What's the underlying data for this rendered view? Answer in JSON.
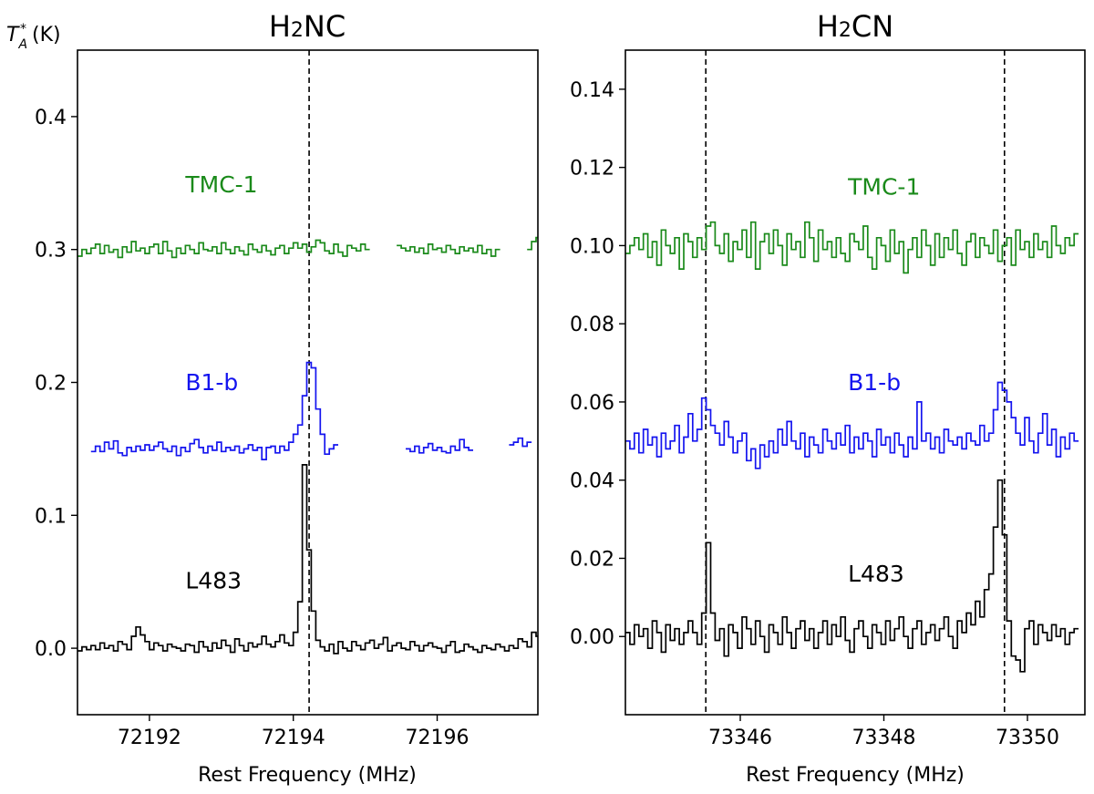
{
  "y_unit_label": {
    "symbol": "T",
    "sub": "A",
    "sup": "*",
    "unit": "(K)"
  },
  "chart_data": [
    {
      "type": "line",
      "title": {
        "main": "H",
        "sub": "2",
        "rest": "NC"
      },
      "xlabel": "Rest Frequency (MHz)",
      "xlim": [
        72191.0,
        72197.4
      ],
      "ylim": [
        -0.05,
        0.45
      ],
      "xticks": [
        72192,
        72194,
        72196
      ],
      "yticks": [
        0.0,
        0.1,
        0.2,
        0.3,
        0.4
      ],
      "ytick_labels": [
        "0.0",
        "0.1",
        "0.2",
        "0.3",
        "0.4"
      ],
      "line_markers": [
        72194.22
      ],
      "series": [
        {
          "name": "TMC-1",
          "color": "#1a8a1a",
          "label_pos": [
            72192.5,
            0.343
          ],
          "x0": 72191.0,
          "dx": 0.0625,
          "values": [
            0.295,
            0.3,
            0.297,
            0.301,
            0.304,
            0.297,
            0.303,
            0.298,
            0.3,
            0.294,
            0.302,
            0.298,
            0.306,
            0.299,
            0.301,
            0.297,
            0.302,
            0.304,
            0.297,
            0.306,
            0.299,
            0.294,
            0.301,
            0.297,
            0.303,
            0.3,
            0.297,
            0.305,
            0.3,
            0.299,
            0.302,
            0.297,
            0.305,
            0.3,
            0.297,
            0.302,
            0.299,
            0.296,
            0.304,
            0.3,
            0.298,
            0.303,
            0.299,
            0.296,
            0.301,
            0.303,
            0.297,
            0.301,
            0.305,
            0.301,
            0.304,
            0.298,
            0.302,
            0.307,
            0.305,
            0.299,
            0.297,
            0.304,
            0.298,
            0.295,
            0.303,
            0.301,
            0.299,
            0.304,
            0.3,
            null,
            null,
            null,
            null,
            null,
            null,
            0.303,
            0.301,
            0.299,
            0.302,
            0.298,
            0.301,
            0.297,
            0.304,
            0.3,
            0.301,
            0.298,
            0.303,
            0.3,
            0.297,
            0.302,
            0.299,
            0.301,
            0.298,
            0.303,
            0.297,
            0.3,
            0.295,
            0.3,
            null,
            null,
            null,
            null,
            null,
            null,
            0.3,
            0.306,
            0.309,
            0.303,
            0.297
          ]
        },
        {
          "name": "B1-b",
          "color": "#1414ef",
          "label_pos": [
            72192.5,
            0.194
          ],
          "x0": 72191.0,
          "dx": 0.0625,
          "values": [
            null,
            null,
            null,
            0.148,
            0.152,
            0.148,
            0.155,
            0.15,
            0.156,
            0.147,
            0.145,
            0.151,
            0.148,
            0.152,
            0.149,
            0.153,
            0.149,
            0.152,
            0.155,
            0.15,
            0.148,
            0.152,
            0.145,
            0.151,
            0.148,
            0.154,
            0.157,
            0.151,
            0.147,
            0.152,
            0.149,
            0.155,
            0.148,
            0.151,
            0.149,
            0.152,
            0.147,
            0.15,
            0.153,
            0.149,
            0.151,
            0.142,
            0.151,
            0.152,
            0.147,
            0.152,
            0.149,
            0.155,
            0.161,
            0.168,
            0.19,
            0.215,
            0.211,
            0.18,
            0.161,
            0.146,
            0.15,
            0.153,
            null,
            null,
            null,
            null,
            null,
            null,
            null,
            null,
            null,
            null,
            null,
            null,
            null,
            null,
            null,
            0.15,
            0.148,
            0.152,
            0.147,
            0.151,
            0.154,
            0.149,
            0.151,
            0.148,
            0.147,
            0.152,
            0.149,
            0.157,
            0.151,
            0.149,
            null,
            null,
            null,
            null,
            null,
            null,
            null,
            null,
            0.153,
            0.155,
            0.158,
            0.152,
            0.155
          ]
        },
        {
          "name": "L483",
          "color": "#000000",
          "label_pos": [
            72192.5,
            0.045
          ],
          "x0": 72191.0,
          "dx": 0.0625,
          "values": [
            -0.002,
            0.001,
            -0.001,
            0.002,
            -0.001,
            0.004,
            0.0,
            0.002,
            -0.002,
            0.005,
            0.003,
            -0.001,
            0.009,
            0.016,
            0.01,
            0.005,
            -0.001,
            0.004,
            0.002,
            -0.002,
            0.003,
            0.001,
            0.0,
            -0.002,
            0.003,
            0.002,
            -0.003,
            0.005,
            0.001,
            -0.002,
            0.004,
            0.0,
            0.006,
            0.002,
            -0.003,
            0.007,
            0.002,
            -0.002,
            0.004,
            0.001,
            0.003,
            0.009,
            0.003,
            0.001,
            0.005,
            0.01,
            0.004,
            0.002,
            0.012,
            0.035,
            0.138,
            0.074,
            0.028,
            0.006,
            0.001,
            -0.002,
            0.003,
            -0.004,
            0.005,
            0.0,
            -0.002,
            0.005,
            0.002,
            -0.001,
            0.004,
            0.006,
            0.0,
            0.003,
            0.008,
            -0.002,
            0.002,
            0.004,
            0.0,
            -0.001,
            0.005,
            0.002,
            -0.002,
            0.002,
            0.004,
            0.001,
            0.0,
            -0.003,
            0.002,
            0.005,
            -0.003,
            -0.002,
            0.003,
            0.001,
            -0.001,
            -0.003,
            0.002,
            0.0,
            -0.001,
            0.003,
            0.001,
            -0.002,
            0.002,
            0.0,
            0.007,
            0.005,
            0.001,
            0.012,
            0.009,
            0.002
          ]
        }
      ]
    },
    {
      "type": "line",
      "title": {
        "main": "H",
        "sub": "2",
        "rest": "CN"
      },
      "xlabel": "Rest Frequency (MHz)",
      "xlim": [
        73344.4,
        73350.8
      ],
      "ylim": [
        -0.02,
        0.15
      ],
      "xticks": [
        73346,
        73348,
        73350
      ],
      "yticks": [
        0.0,
        0.02,
        0.04,
        0.06,
        0.08,
        0.1,
        0.12,
        0.14
      ],
      "ytick_labels": [
        "0.00",
        "0.02",
        "0.04",
        "0.06",
        "0.08",
        "0.10",
        "0.12",
        "0.14"
      ],
      "line_markers": [
        73345.52,
        73349.68
      ],
      "series": [
        {
          "name": "TMC-1",
          "color": "#1a8a1a",
          "label_pos": [
            73347.5,
            0.113
          ],
          "x0": 73344.4,
          "dx": 0.0625,
          "values": [
            0.098,
            0.1,
            0.102,
            0.099,
            0.103,
            0.097,
            0.101,
            0.095,
            0.104,
            0.1,
            0.098,
            0.102,
            0.094,
            0.103,
            0.101,
            0.097,
            0.102,
            0.099,
            0.105,
            0.106,
            0.1,
            0.098,
            0.103,
            0.096,
            0.101,
            0.099,
            0.104,
            0.097,
            0.106,
            0.094,
            0.101,
            0.103,
            0.098,
            0.104,
            0.1,
            0.095,
            0.103,
            0.099,
            0.101,
            0.097,
            0.106,
            0.102,
            0.096,
            0.104,
            0.099,
            0.101,
            0.097,
            0.102,
            0.098,
            0.096,
            0.103,
            0.101,
            0.099,
            0.105,
            0.097,
            0.094,
            0.102,
            0.1,
            0.096,
            0.104,
            0.098,
            0.101,
            0.093,
            0.099,
            0.102,
            0.097,
            0.104,
            0.1,
            0.095,
            0.103,
            0.097,
            0.102,
            0.099,
            0.104,
            0.098,
            0.095,
            0.101,
            0.103,
            0.097,
            0.102,
            0.1,
            0.098,
            0.104,
            0.096,
            0.1,
            0.102,
            0.095,
            0.104,
            0.099,
            0.101,
            0.097,
            0.103,
            0.099,
            0.101,
            0.097,
            0.105,
            0.1,
            0.098,
            0.102,
            0.1,
            0.103
          ]
        },
        {
          "name": "B1-b",
          "color": "#1414ef",
          "label_pos": [
            73347.5,
            0.063
          ],
          "x0": 73344.4,
          "dx": 0.0625,
          "values": [
            0.05,
            0.048,
            0.052,
            0.047,
            0.053,
            0.049,
            0.051,
            0.046,
            0.052,
            0.048,
            0.05,
            0.054,
            0.047,
            0.051,
            0.057,
            0.05,
            0.053,
            0.061,
            0.058,
            0.054,
            0.052,
            0.049,
            0.055,
            0.051,
            0.047,
            0.05,
            0.052,
            0.045,
            0.048,
            0.043,
            0.049,
            0.046,
            0.05,
            0.047,
            0.053,
            0.049,
            0.055,
            0.05,
            0.048,
            0.052,
            0.046,
            0.051,
            0.049,
            0.047,
            0.053,
            0.05,
            0.048,
            0.052,
            0.049,
            0.054,
            0.047,
            0.051,
            0.048,
            0.052,
            0.05,
            0.046,
            0.053,
            0.049,
            0.051,
            0.047,
            0.052,
            0.049,
            0.046,
            0.051,
            0.048,
            0.06,
            0.05,
            0.052,
            0.048,
            0.051,
            0.047,
            0.053,
            0.05,
            0.049,
            0.051,
            0.048,
            0.052,
            0.05,
            0.049,
            0.054,
            0.05,
            0.052,
            0.058,
            0.065,
            0.063,
            0.06,
            0.056,
            0.052,
            0.049,
            0.056,
            0.05,
            0.047,
            0.052,
            0.057,
            0.049,
            0.053,
            0.046,
            0.051,
            0.048,
            0.052,
            0.05
          ]
        },
        {
          "name": "L483",
          "color": "#000000",
          "label_pos": [
            73347.5,
            0.014
          ],
          "x0": 73344.4,
          "dx": 0.0625,
          "values": [
            0.001,
            -0.002,
            0.003,
            0.0,
            0.002,
            -0.003,
            0.004,
            0.001,
            -0.004,
            0.003,
            -0.001,
            0.002,
            -0.002,
            0.001,
            0.004,
            0.001,
            -0.002,
            0.006,
            0.024,
            0.006,
            -0.001,
            0.002,
            -0.005,
            0.003,
            0.001,
            -0.003,
            0.005,
            0.002,
            -0.002,
            0.004,
            0.0,
            -0.004,
            0.003,
            0.001,
            -0.002,
            0.005,
            0.001,
            -0.003,
            0.002,
            0.004,
            -0.001,
            0.002,
            -0.003,
            0.001,
            0.004,
            -0.002,
            0.003,
            0.0,
            0.005,
            -0.001,
            -0.004,
            0.002,
            0.004,
            0.0,
            -0.003,
            0.003,
            0.001,
            -0.002,
            0.004,
            -0.001,
            0.002,
            0.005,
            0.0,
            -0.003,
            0.002,
            0.004,
            -0.002,
            0.001,
            0.003,
            -0.001,
            0.002,
            0.005,
            0.0,
            -0.003,
            0.004,
            0.001,
            0.006,
            0.003,
            0.009,
            0.005,
            0.012,
            0.016,
            0.028,
            0.04,
            0.026,
            0.004,
            -0.005,
            -0.006,
            -0.009,
            0.002,
            0.004,
            -0.002,
            0.003,
            0.001,
            -0.001,
            0.003,
            0.0,
            0.002,
            -0.002,
            0.001,
            0.002
          ]
        }
      ]
    }
  ]
}
